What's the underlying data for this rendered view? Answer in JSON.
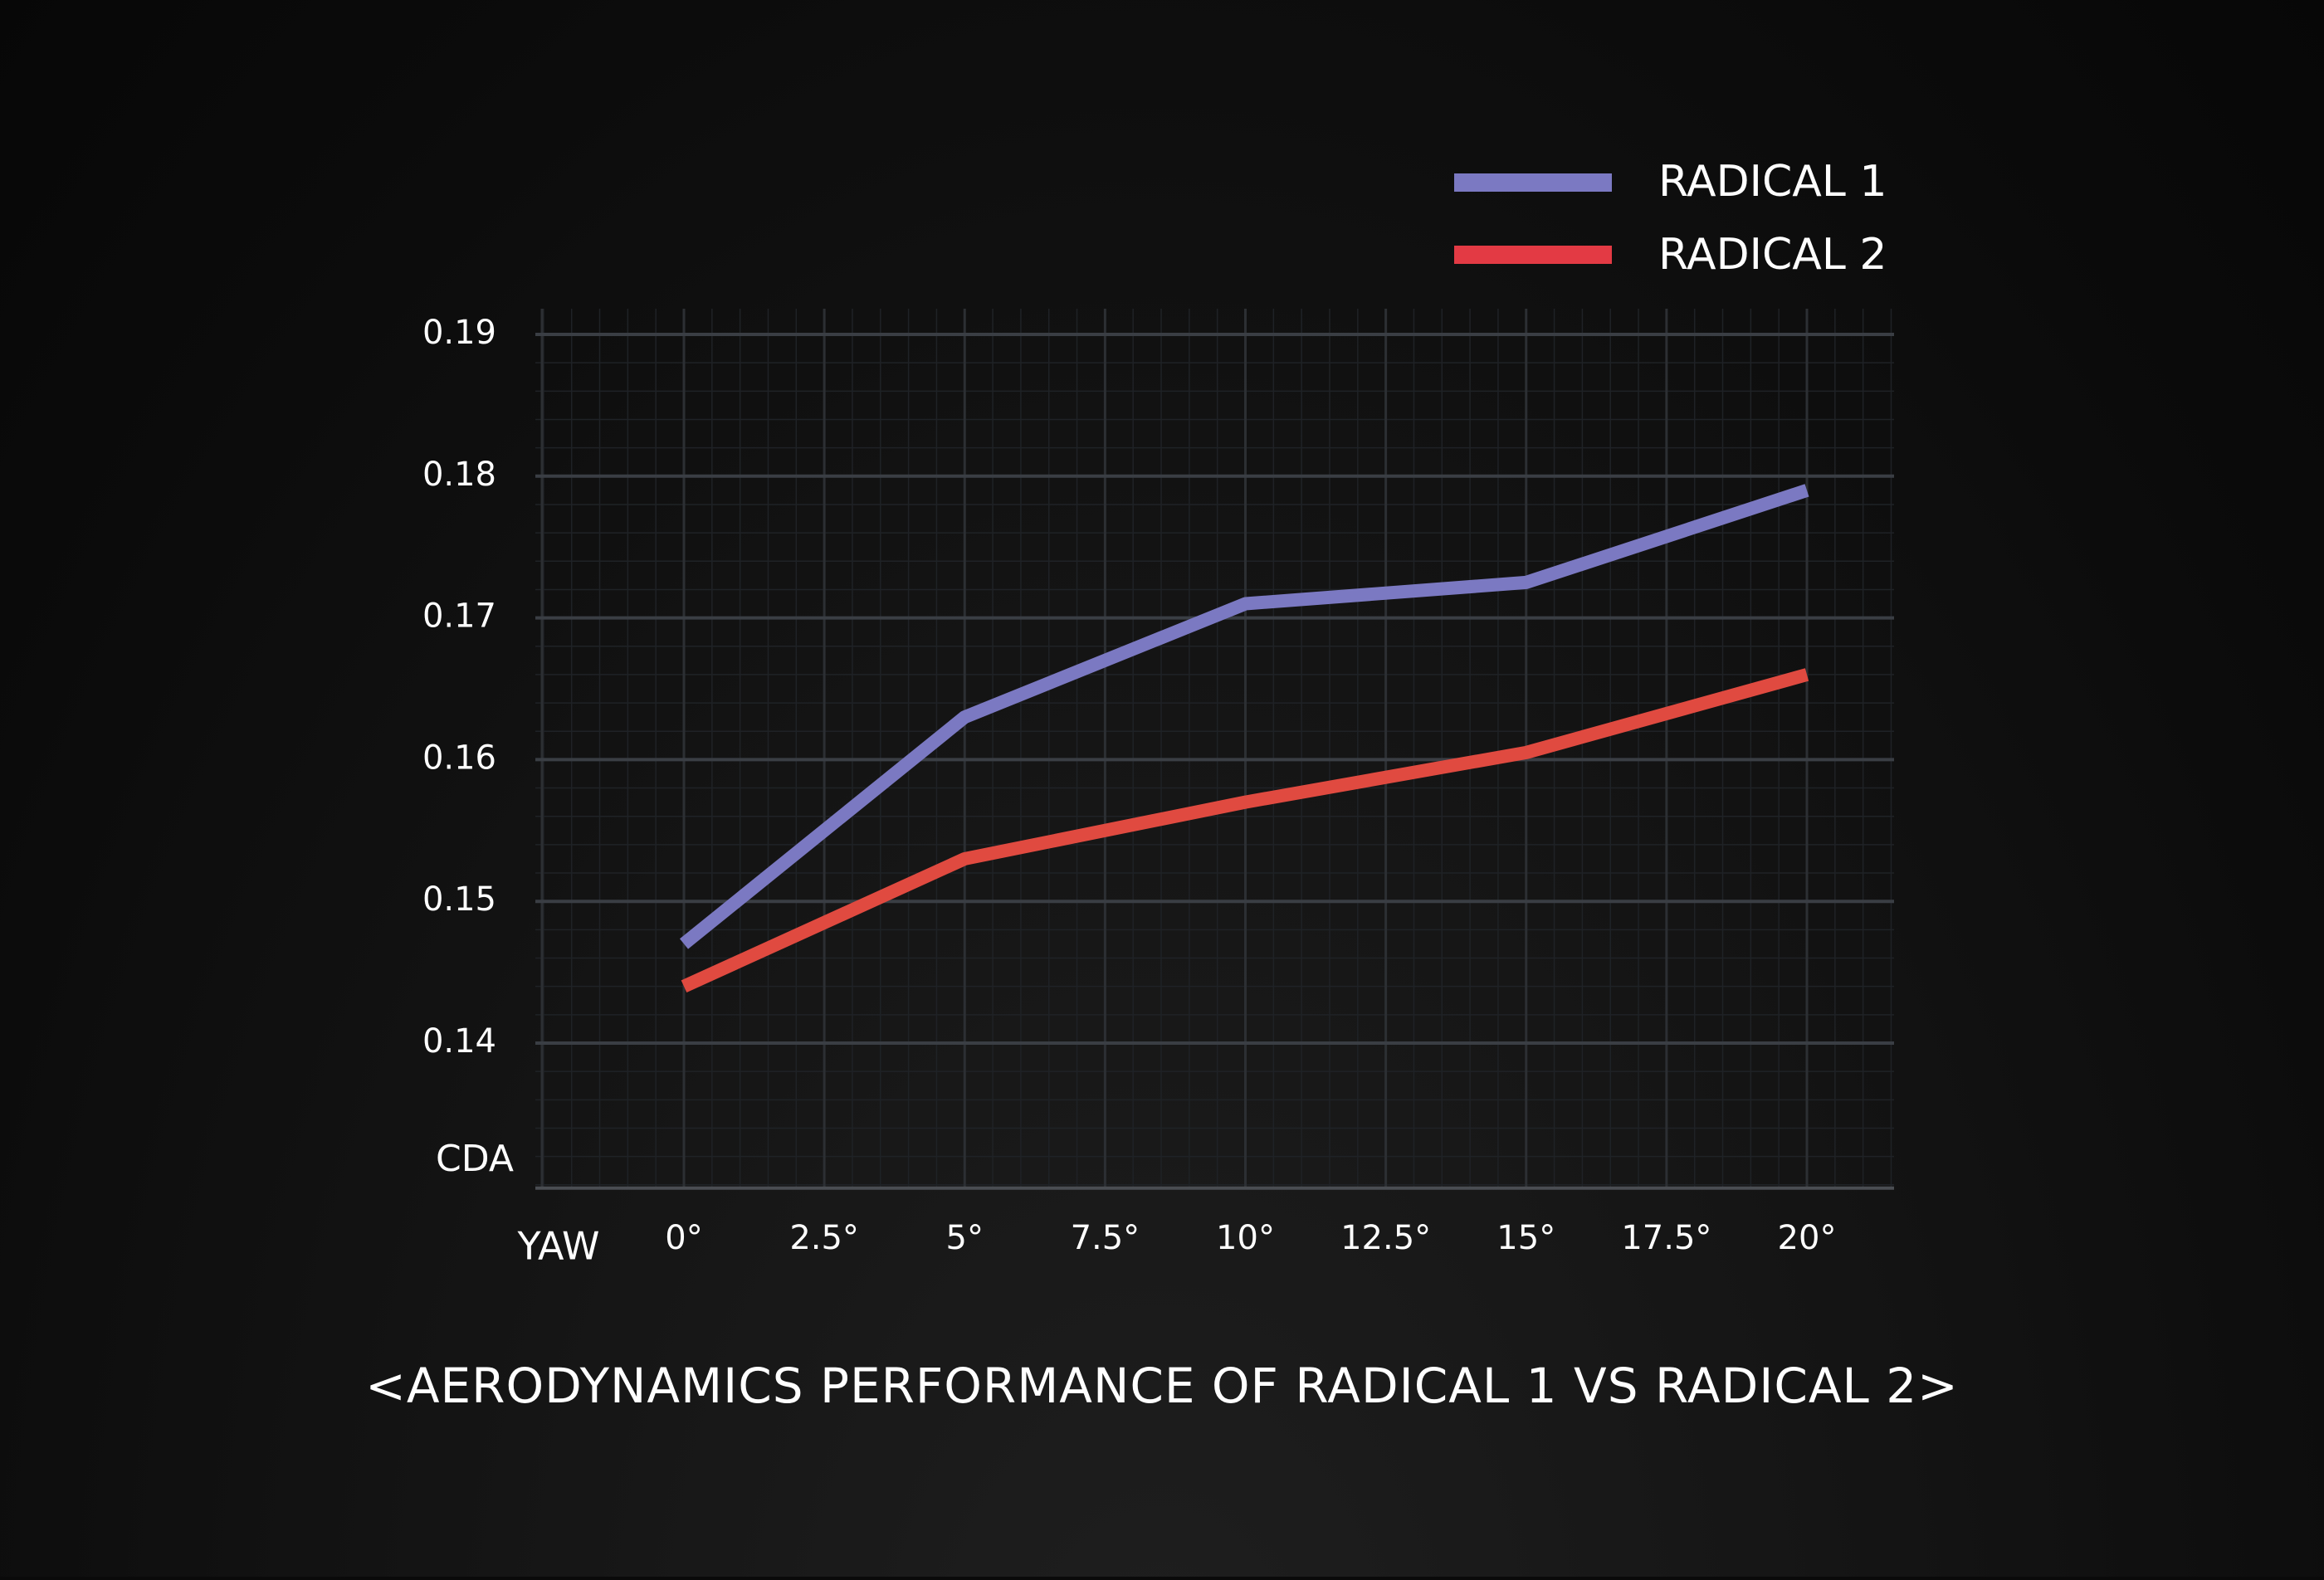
{
  "chart_data": {
    "type": "line",
    "title": "<AERODYNAMICS PERFORMANCE OF RADICAL 1 VS RADICAL 2>",
    "xlabel": "YAW",
    "ylabel": "CDA",
    "x": [
      0,
      5,
      10,
      15,
      20
    ],
    "xticks": [
      0,
      2.5,
      5,
      7.5,
      10,
      12.5,
      15,
      17.5,
      20
    ],
    "xtick_labels": [
      "0°",
      "2.5°",
      "5°",
      "7.5°",
      "10°",
      "12.5°",
      "15°",
      "17.5°",
      "20°"
    ],
    "xlim": [
      -2.5,
      22
    ],
    "yticks": [
      0.14,
      0.15,
      0.16,
      0.17,
      0.18,
      0.19
    ],
    "ytick_labels": [
      "0.14",
      "0.15",
      "0.16",
      "0.17",
      "0.18",
      "0.19"
    ],
    "ylim": [
      0.13,
      0.192
    ],
    "grid": true,
    "legend_position": "top-right",
    "series": [
      {
        "name": "RADICAL 1",
        "color": "#7b79c2",
        "values": [
          0.147,
          0.163,
          0.171,
          0.1725,
          0.179
        ]
      },
      {
        "name": "RADICAL 2",
        "color": "#e04a40",
        "values": [
          0.144,
          0.153,
          0.157,
          0.1605,
          0.166
        ]
      }
    ],
    "colors": {
      "major_grid": "#3a3e44",
      "minor_grid": "#1f2226",
      "axis": "#4a4d52",
      "text": "#ffffff",
      "legend_red": "#e33a44"
    }
  }
}
